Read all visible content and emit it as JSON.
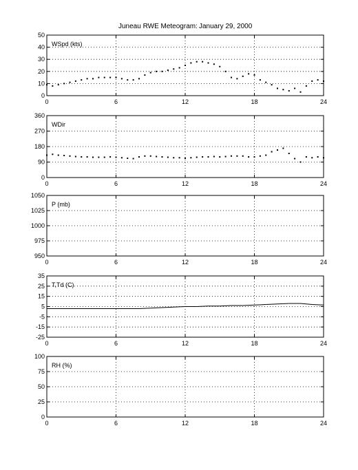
{
  "figure": {
    "title_left": "Juneau RWE Meteogram:",
    "title_right": "January 29, 2000"
  },
  "chart_data": [
    {
      "type": "scatter",
      "label": "WSpd (kts)",
      "xlim": [
        0,
        24
      ],
      "ylim": [
        0,
        50
      ],
      "x_ticks": [
        0,
        6,
        12,
        18,
        24
      ],
      "y_ticks": [
        0,
        10,
        20,
        30,
        40,
        50
      ],
      "grid": true,
      "series": [
        {
          "x": [
            0,
            0.5,
            1,
            1.5,
            2,
            2.5,
            3,
            3.5,
            4,
            4.5,
            5,
            5.5,
            6,
            6.5,
            7,
            7.5,
            8,
            8.5,
            9,
            9.5,
            10,
            10.5,
            11,
            11.5,
            12,
            12.5,
            13,
            13.5,
            14,
            14.5,
            15,
            15.5,
            16,
            16.5,
            17,
            17.5,
            18,
            18.5,
            19,
            19.5,
            20,
            20.5,
            21,
            21.5,
            22,
            22.5,
            23,
            23.5,
            24
          ],
          "y": [
            9,
            8,
            9,
            10,
            11,
            12,
            13,
            14,
            14,
            15,
            15,
            15,
            15,
            14,
            13,
            13,
            14,
            17,
            19,
            20,
            20,
            21,
            22,
            23,
            25,
            27,
            28,
            28,
            27,
            26,
            24,
            20,
            15,
            14,
            16,
            18,
            17,
            13,
            11,
            9,
            6,
            5,
            4,
            6,
            3,
            8,
            12,
            13,
            12
          ]
        }
      ]
    },
    {
      "type": "scatter",
      "label": "WDir",
      "xlim": [
        0,
        24
      ],
      "ylim": [
        0,
        360
      ],
      "x_ticks": [
        0,
        6,
        12,
        18,
        24
      ],
      "y_ticks": [
        0,
        90,
        180,
        270,
        360
      ],
      "grid": true,
      "series": [
        {
          "x": [
            0,
            0.5,
            1,
            1.5,
            2,
            2.5,
            3,
            3.5,
            4,
            4.5,
            5,
            5.5,
            6,
            6.5,
            7,
            7.5,
            8,
            8.5,
            9,
            9.5,
            10,
            10.5,
            11,
            11.5,
            12,
            12.5,
            13,
            13.5,
            14,
            14.5,
            15,
            15.5,
            16,
            16.5,
            17,
            17.5,
            18,
            18.5,
            19,
            19.5,
            20,
            20.5,
            21,
            21.5,
            22,
            22.5,
            23,
            23.5,
            24
          ],
          "y": [
            130,
            135,
            130,
            128,
            125,
            122,
            120,
            120,
            118,
            118,
            118,
            120,
            118,
            115,
            112,
            110,
            120,
            125,
            125,
            122,
            120,
            118,
            115,
            115,
            112,
            115,
            118,
            120,
            120,
            122,
            120,
            122,
            125,
            125,
            125,
            120,
            120,
            125,
            130,
            150,
            160,
            170,
            140,
            110,
            90,
            120,
            115,
            120,
            115
          ]
        }
      ]
    },
    {
      "type": "scatter",
      "label": "P (mb)",
      "xlim": [
        0,
        24
      ],
      "ylim": [
        950,
        1050
      ],
      "x_ticks": [
        0,
        6,
        12,
        18,
        24
      ],
      "y_ticks": [
        950,
        975,
        1000,
        1025,
        1050
      ],
      "grid": true,
      "series": []
    },
    {
      "type": "line",
      "label": "T,Td (C)",
      "xlim": [
        0,
        24
      ],
      "ylim": [
        -25,
        35
      ],
      "x_ticks": [
        0,
        6,
        12,
        18,
        24
      ],
      "y_ticks": [
        -25,
        -15,
        -5,
        5,
        15,
        25,
        35
      ],
      "grid": true,
      "series": [
        {
          "x": [
            0,
            2,
            4,
            6,
            8,
            9,
            10,
            11,
            12,
            13,
            14,
            15,
            16,
            17,
            18,
            19,
            20,
            21,
            22,
            23,
            24
          ],
          "y": [
            3,
            3,
            3,
            3,
            3,
            3.5,
            4,
            4.5,
            5,
            5,
            5.5,
            5.5,
            6,
            6,
            6.5,
            7,
            7.5,
            8,
            8,
            7,
            6.5
          ]
        }
      ]
    },
    {
      "type": "scatter",
      "label": "RH (%)",
      "xlim": [
        0,
        24
      ],
      "ylim": [
        0,
        100
      ],
      "x_ticks": [
        0,
        6,
        12,
        18,
        24
      ],
      "y_ticks": [
        0,
        25,
        50,
        75,
        100
      ],
      "grid": true,
      "series": []
    }
  ]
}
